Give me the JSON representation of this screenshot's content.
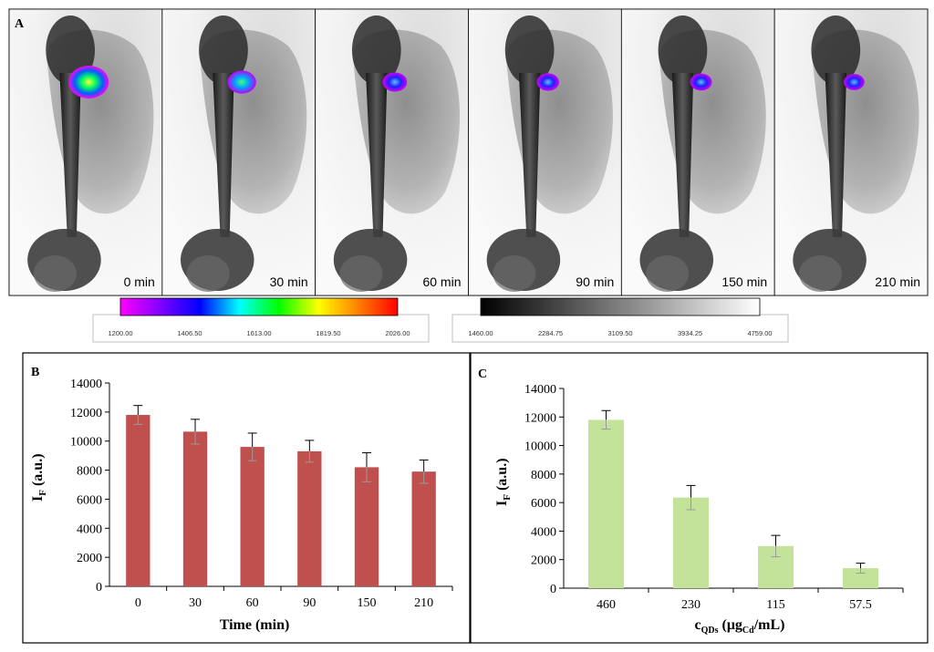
{
  "panel_a": {
    "label": "A",
    "frames": [
      {
        "time_label": "0 min",
        "signal_level": 1.0
      },
      {
        "time_label": "30 min",
        "signal_level": 0.55
      },
      {
        "time_label": "60 min",
        "signal_level": 0.38
      },
      {
        "time_label": "90 min",
        "signal_level": 0.3
      },
      {
        "time_label": "150 min",
        "signal_level": 0.28
      },
      {
        "time_label": "210 min",
        "signal_level": 0.24
      }
    ],
    "color_scale": {
      "ticks": [
        "1200.00",
        "1406.50",
        "1613.00",
        "1819.50",
        "2026.00"
      ],
      "gradient": [
        "#ff00ff",
        "#8000ff",
        "#0000ff",
        "#00ffff",
        "#00ff00",
        "#ffff00",
        "#ff8000",
        "#ff0000"
      ]
    },
    "gray_scale": {
      "ticks": [
        "1460.00",
        "2284.75",
        "3109.50",
        "3934.25",
        "4759.00"
      ],
      "gradient": [
        "#000000",
        "#ffffff"
      ]
    }
  },
  "panel_b": {
    "label": "B"
  },
  "panel_c": {
    "label": "C"
  },
  "chart_data": [
    {
      "panel": "B",
      "type": "bar",
      "title": "",
      "categories": [
        "0",
        "30",
        "60",
        "90",
        "150",
        "210"
      ],
      "values": [
        11800,
        10650,
        9600,
        9300,
        8200,
        7900
      ],
      "errors": [
        650,
        850,
        950,
        750,
        1000,
        800
      ],
      "xlabel": "Time (min)",
      "ylabel_main": "I",
      "ylabel_sub": "F",
      "ylabel_rest": " (a.u.)",
      "ylim": [
        0,
        14000
      ],
      "yticks": [
        "0",
        "2000",
        "4000",
        "6000",
        "8000",
        "10000",
        "12000",
        "14000"
      ],
      "bar_color": "#c0504d",
      "grid": false
    },
    {
      "panel": "C",
      "type": "bar",
      "title": "",
      "categories": [
        "460",
        "230",
        "115",
        "57.5"
      ],
      "values": [
        11800,
        6350,
        2950,
        1400
      ],
      "errors": [
        650,
        850,
        750,
        350
      ],
      "xlabel_main": "c",
      "xlabel_sub1": "QDs",
      "xlabel_mid": " (μg",
      "xlabel_sub2": "Cd",
      "xlabel_end": "/mL)",
      "ylabel_main": "I",
      "ylabel_sub": "F",
      "ylabel_rest": " (a.u.)",
      "ylim": [
        0,
        14000
      ],
      "yticks": [
        "0",
        "2000",
        "4000",
        "6000",
        "8000",
        "10000",
        "12000",
        "14000"
      ],
      "bar_color": "#c3e29a",
      "grid": false
    }
  ]
}
